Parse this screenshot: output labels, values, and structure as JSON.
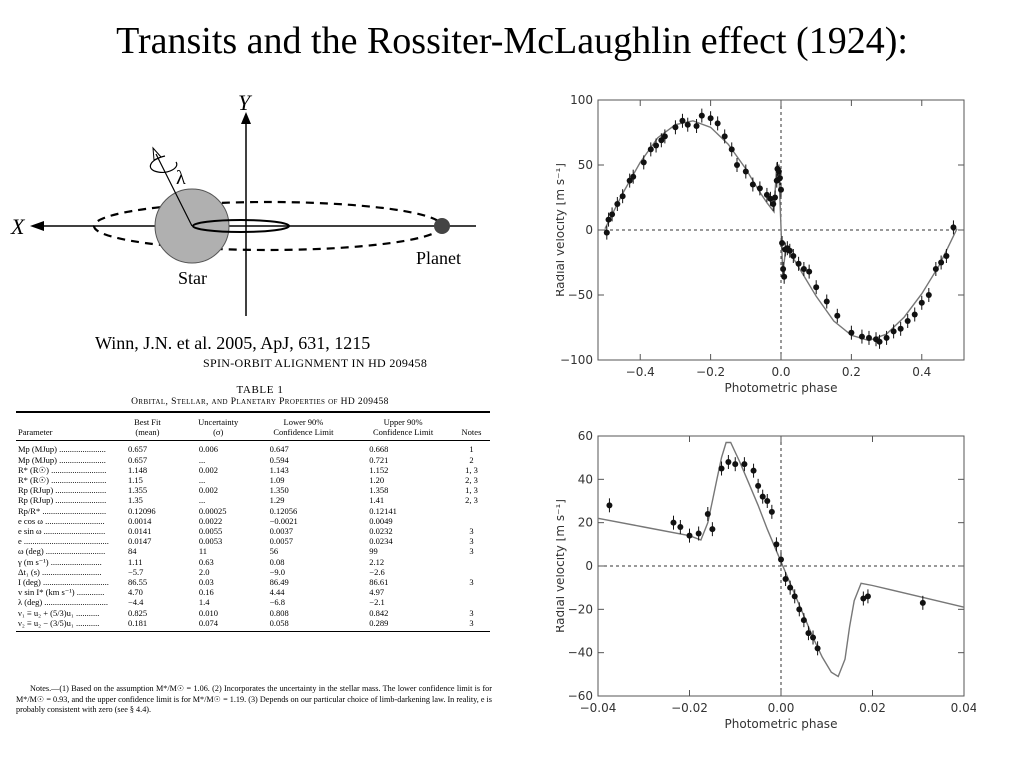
{
  "slide": {
    "title": "Transits and the Rossiter-McLaughlin effect (1924):",
    "citation": "Winn, J.N. et al. 2005, ApJ, 631, 1215"
  },
  "diagram": {
    "y_label": "Y",
    "x_label": "X",
    "lambda_label": "λ",
    "star_label": "Star",
    "planet_label": "Planet"
  },
  "paper": {
    "running_header": "SPIN-ORBIT ALIGNMENT IN HD 209458",
    "table_number": "TABLE 1",
    "table_caption": "Orbital, Stellar, and Planetary Properties of HD 209458",
    "columns": [
      "Parameter",
      "Best Fit\n(mean)",
      "Uncertainty\n(σ)",
      "Lower 90%\nConfidence Limit",
      "Upper 90%\nConfidence Limit",
      "Notes"
    ],
    "rows": [
      [
        "Mp (MJup) ......................",
        "0.657",
        "0.006",
        "0.647",
        "0.668",
        "1"
      ],
      [
        "Mp (MJup) ......................",
        "0.657",
        "...",
        "0.594",
        "0.721",
        "2"
      ],
      [
        "R* (R☉) ..........................",
        "1.148",
        "0.002",
        "1.143",
        "1.152",
        "1, 3"
      ],
      [
        "R* (R☉) ..........................",
        "1.15",
        "...",
        "1.09",
        "1.20",
        "2, 3"
      ],
      [
        "Rp (RJup) ........................",
        "1.355",
        "0.002",
        "1.350",
        "1.358",
        "1, 3"
      ],
      [
        "Rp (RJup) ........................",
        "1.35",
        "...",
        "1.29",
        "1.41",
        "2, 3"
      ],
      [
        "Rp/R* ..............................",
        "0.12096",
        "0.00025",
        "0.12056",
        "0.12141",
        ""
      ],
      [
        "e cos ω ............................",
        "0.0014",
        "0.0022",
        "−0.0021",
        "0.0049",
        ""
      ],
      [
        "e sin ω .............................",
        "0.0141",
        "0.0055",
        "0.0037",
        "0.0232",
        "3"
      ],
      [
        "e ........................................",
        "0.0147",
        "0.0053",
        "0.0057",
        "0.0234",
        "3"
      ],
      [
        "ω (deg) ............................",
        "84",
        "11",
        "56",
        "99",
        "3"
      ],
      [
        "γ (m s⁻¹) ........................",
        "1.11",
        "0.63",
        "0.08",
        "2.12",
        ""
      ],
      [
        "Δt₁ (s) ............................",
        "−5.7",
        "2.0",
        "−9.0",
        "−2.6",
        ""
      ],
      [
        "I (deg) ...............................",
        "86.55",
        "0.03",
        "86.49",
        "86.61",
        "3"
      ],
      [
        "v sin I* (km s⁻¹) .............",
        "4.70",
        "0.16",
        "4.44",
        "4.97",
        ""
      ],
      [
        "λ (deg) ..............................",
        "−4.4",
        "1.4",
        "−6.8",
        "−2.1",
        ""
      ],
      [
        "ν₁ ≡ u₂ + (5/3)u₁ ...........",
        "0.825",
        "0.010",
        "0.808",
        "0.842",
        "3"
      ],
      [
        "ν₂ ≡ u₂ − (3/5)u₁ ...........",
        "0.181",
        "0.074",
        "0.058",
        "0.289",
        "3"
      ]
    ],
    "notes": "Notes.—(1) Based on the assumption M*/M☉ = 1.06. (2) Incorporates the uncertainty in the stellar mass. The lower confidence limit is for M*/M☉ = 0.93, and the upper confidence limit is for M*/M☉ = 1.19. (3) Depends on our particular choice of limb-darkening law. In reality, e is probably consistent with zero (see § 4.4)."
  },
  "chart_data": [
    {
      "type": "scatter",
      "xlabel": "Photometric phase",
      "ylabel": "Radial velocity  [m s⁻¹]",
      "xlim": [
        -0.52,
        0.52
      ],
      "ylim": [
        -100,
        100
      ],
      "xticks": [
        -0.4,
        -0.2,
        0.0,
        0.2,
        0.4
      ],
      "xtick_labels": [
        "−0.4",
        "−0.2",
        "0.0",
        "0.2",
        "0.4"
      ],
      "yticks": [
        -100,
        -50,
        0,
        50,
        100
      ],
      "ytick_labels": [
        "−100",
        "−50",
        "0",
        "50",
        "100"
      ],
      "model_x": [
        -0.5,
        -0.45,
        -0.4,
        -0.35,
        -0.3,
        -0.25,
        -0.2,
        -0.15,
        -0.1,
        -0.06,
        -0.04,
        -0.02,
        -0.012,
        -0.005,
        0.0,
        0.005,
        0.012,
        0.02,
        0.04,
        0.06,
        0.1,
        0.15,
        0.2,
        0.25,
        0.3,
        0.35,
        0.4,
        0.45,
        0.5
      ],
      "model_y": [
        1,
        28,
        52,
        71,
        81,
        84,
        79,
        66,
        47,
        29,
        21,
        14,
        52,
        38,
        2,
        -34,
        -18,
        -15,
        -24,
        -33,
        -51,
        -70,
        -81,
        -85,
        -80,
        -67,
        -49,
        -27,
        1
      ],
      "points": [
        [
          -0.495,
          -2
        ],
        [
          -0.49,
          8
        ],
        [
          -0.48,
          12
        ],
        [
          -0.465,
          20
        ],
        [
          -0.45,
          26
        ],
        [
          -0.43,
          38
        ],
        [
          -0.42,
          41
        ],
        [
          -0.39,
          52
        ],
        [
          -0.37,
          62
        ],
        [
          -0.355,
          65
        ],
        [
          -0.34,
          69
        ],
        [
          -0.33,
          72
        ],
        [
          -0.3,
          79
        ],
        [
          -0.28,
          84
        ],
        [
          -0.265,
          81
        ],
        [
          -0.24,
          80
        ],
        [
          -0.225,
          88
        ],
        [
          -0.2,
          86
        ],
        [
          -0.18,
          82
        ],
        [
          -0.16,
          72
        ],
        [
          -0.14,
          62
        ],
        [
          -0.125,
          50
        ],
        [
          -0.1,
          45
        ],
        [
          -0.08,
          35
        ],
        [
          -0.06,
          32
        ],
        [
          -0.04,
          27
        ],
        [
          -0.03,
          24
        ],
        [
          -0.022,
          20
        ],
        [
          -0.017,
          25
        ],
        [
          -0.012,
          38
        ],
        [
          -0.01,
          47
        ],
        [
          -0.006,
          45
        ],
        [
          -0.003,
          40
        ],
        [
          0.0,
          31
        ],
        [
          0.003,
          -10
        ],
        [
          0.006,
          -30
        ],
        [
          0.009,
          -36
        ],
        [
          0.012,
          -15
        ],
        [
          0.018,
          -14
        ],
        [
          0.025,
          -16
        ],
        [
          0.035,
          -20
        ],
        [
          0.05,
          -26
        ],
        [
          0.065,
          -30
        ],
        [
          0.08,
          -32
        ],
        [
          0.1,
          -44
        ],
        [
          0.13,
          -55
        ],
        [
          0.16,
          -66
        ],
        [
          0.2,
          -79
        ],
        [
          0.23,
          -82
        ],
        [
          0.25,
          -83
        ],
        [
          0.27,
          -84
        ],
        [
          0.28,
          -86
        ],
        [
          0.3,
          -83
        ],
        [
          0.32,
          -78
        ],
        [
          0.34,
          -76
        ],
        [
          0.36,
          -70
        ],
        [
          0.38,
          -65
        ],
        [
          0.4,
          -56
        ],
        [
          0.42,
          -50
        ],
        [
          0.44,
          -30
        ],
        [
          0.455,
          -25
        ],
        [
          0.47,
          -20
        ],
        [
          0.49,
          2
        ]
      ]
    },
    {
      "type": "scatter",
      "xlabel": "Photometric phase",
      "ylabel": "Radial velocity  [m s⁻¹]",
      "xlim": [
        -0.04,
        0.04
      ],
      "ylim": [
        -60,
        60
      ],
      "xticks": [
        -0.04,
        -0.02,
        0.0,
        0.02,
        0.04
      ],
      "xtick_labels": [
        "−0.04",
        "−0.02",
        "0.00",
        "0.02",
        "0.04"
      ],
      "yticks": [
        -60,
        -40,
        -20,
        0,
        20,
        40,
        60
      ],
      "ytick_labels": [
        "−60",
        "−40",
        "−20",
        "0",
        "20",
        "40",
        "60"
      ],
      "model_x": [
        -0.04,
        -0.03,
        -0.02,
        -0.0175,
        -0.016,
        -0.015,
        -0.014,
        -0.013,
        -0.012,
        -0.011,
        -0.009,
        -0.007,
        -0.005,
        -0.003,
        -0.001,
        0.0,
        0.001,
        0.003,
        0.005,
        0.007,
        0.009,
        0.011,
        0.0125,
        0.014,
        0.015,
        0.016,
        0.0175,
        0.02,
        0.03,
        0.04
      ],
      "model_y": [
        22,
        18,
        14,
        12,
        20,
        30,
        40,
        50,
        57,
        57,
        48,
        38,
        28,
        17,
        7,
        2,
        -3,
        -13,
        -23,
        -33,
        -42,
        -49,
        -51,
        -43,
        -28,
        -16,
        -8,
        -9,
        -14,
        -19
      ],
      "points": [
        [
          -0.0375,
          28
        ],
        [
          -0.0235,
          20
        ],
        [
          -0.022,
          18
        ],
        [
          -0.02,
          14
        ],
        [
          -0.018,
          15
        ],
        [
          -0.016,
          24
        ],
        [
          -0.015,
          17
        ],
        [
          -0.013,
          45
        ],
        [
          -0.0115,
          48
        ],
        [
          -0.01,
          47
        ],
        [
          -0.008,
          47
        ],
        [
          -0.006,
          44
        ],
        [
          -0.005,
          37
        ],
        [
          -0.004,
          32
        ],
        [
          -0.003,
          30
        ],
        [
          -0.002,
          25
        ],
        [
          -0.001,
          10
        ],
        [
          0.0,
          3
        ],
        [
          0.001,
          -6
        ],
        [
          0.002,
          -10
        ],
        [
          0.003,
          -14
        ],
        [
          0.004,
          -20
        ],
        [
          0.005,
          -25
        ],
        [
          0.006,
          -31
        ],
        [
          0.007,
          -33
        ],
        [
          0.008,
          -38
        ],
        [
          0.018,
          -15
        ],
        [
          0.019,
          -14
        ],
        [
          0.031,
          -17
        ]
      ]
    }
  ]
}
